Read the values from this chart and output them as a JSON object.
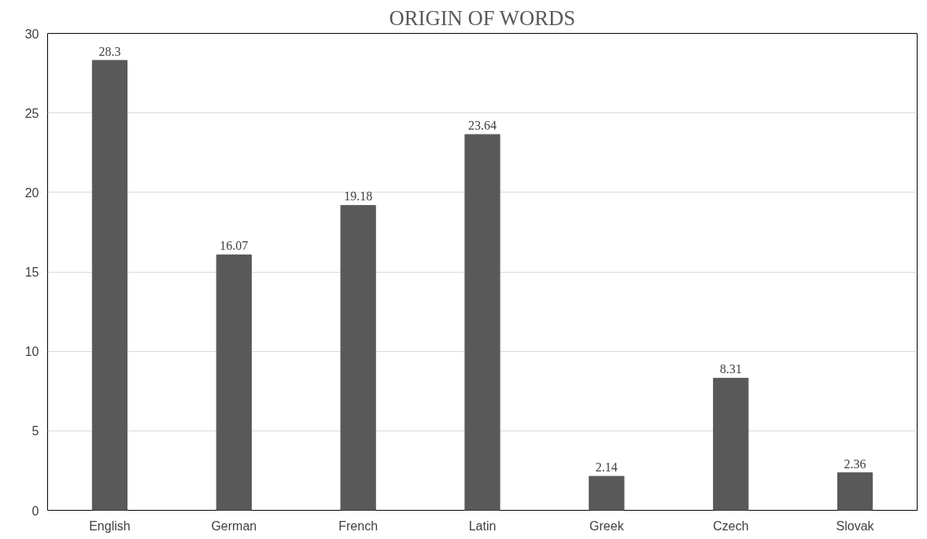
{
  "chart_data": {
    "type": "bar",
    "title": "ORIGIN OF WORDS",
    "categories": [
      "English",
      "German",
      "French",
      "Latin",
      "Greek",
      "Czech",
      "Slovak"
    ],
    "values": [
      28.3,
      16.07,
      19.18,
      23.64,
      2.14,
      8.31,
      2.36
    ],
    "color": "#595959",
    "ylim": [
      0,
      30
    ],
    "yticks": [
      0,
      5,
      10,
      15,
      20,
      25,
      30
    ],
    "grid": "y",
    "data_labels": true
  }
}
